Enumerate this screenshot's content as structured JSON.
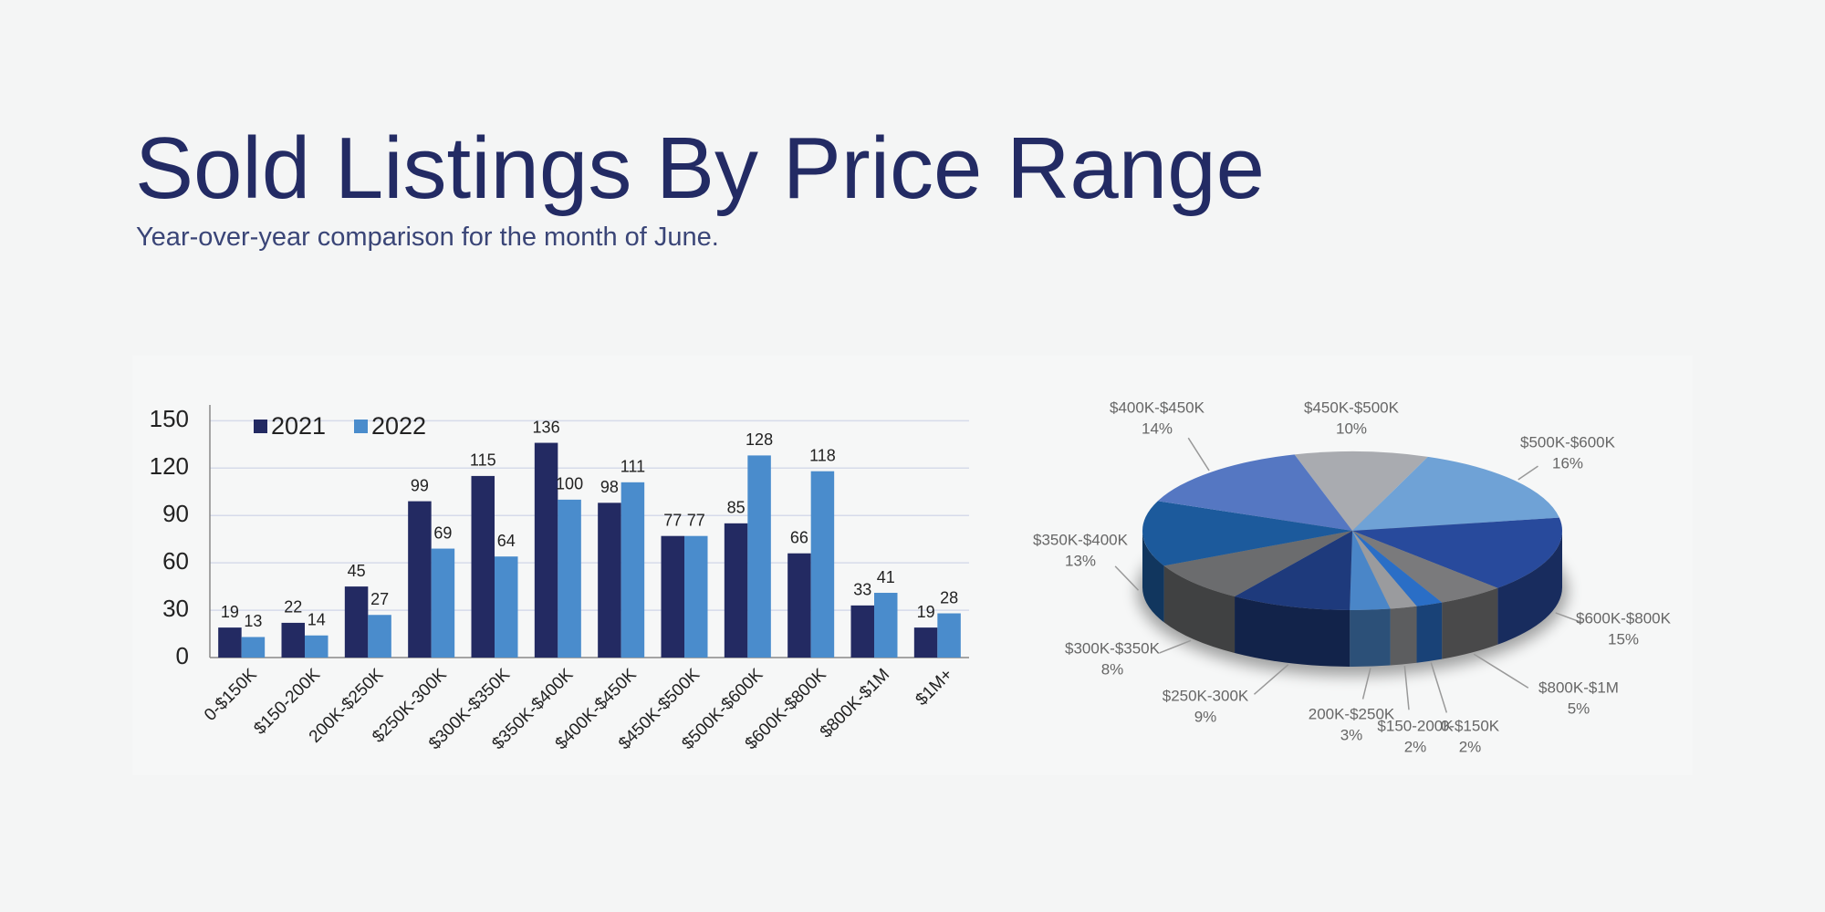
{
  "title": "Sold Listings By Price Range",
  "subtitle": "Year-over-year comparison for the month of June.",
  "chart_data": [
    {
      "type": "bar",
      "categories": [
        "0-$150K",
        "$150-200K",
        "200K-$250K",
        "$250K-300K",
        "$300K-$350K",
        "$350K-$400K",
        "$400K-$450K",
        "$450K-$500K",
        "$500K-$600K",
        "$600K-$800K",
        "$800K-$1M",
        "$1M+"
      ],
      "series": [
        {
          "name": "2021",
          "color": "#232a62",
          "values": [
            19,
            22,
            45,
            99,
            115,
            136,
            98,
            77,
            85,
            66,
            33,
            19
          ]
        },
        {
          "name": "2022",
          "color": "#4a8ccc",
          "values": [
            13,
            14,
            27,
            69,
            64,
            100,
            111,
            77,
            128,
            118,
            41,
            28
          ]
        }
      ],
      "ylim": [
        0,
        160
      ],
      "yticks": [
        0,
        30,
        60,
        90,
        120,
        150
      ],
      "grid": true,
      "legend": "top-left"
    },
    {
      "type": "pie",
      "categories": [
        "$450K-$500K",
        "$500K-$600K",
        "$600K-$800K",
        "$800K-$1M",
        "0-$150K",
        "$150-200K",
        "200K-$250K",
        "$250K-300K",
        "$300K-$350K",
        "$350K-$400K",
        "$400K-$450K"
      ],
      "values": [
        10,
        16,
        15,
        5,
        2,
        2,
        3,
        9,
        8,
        13,
        14
      ],
      "value_labels": [
        "10%",
        "16%",
        "15%",
        "5%",
        "2%",
        "2%",
        "3%",
        "9%",
        "8%",
        "13%",
        "14%"
      ],
      "colors": [
        "#a9abb0",
        "#6fa2d6",
        "#284a9c",
        "#7a7a7c",
        "#2a6ec6",
        "#9a9b9e",
        "#4a86c8",
        "#1e3a7c",
        "#6b6c6e",
        "#1c5a9c",
        "#5577c2"
      ]
    }
  ]
}
